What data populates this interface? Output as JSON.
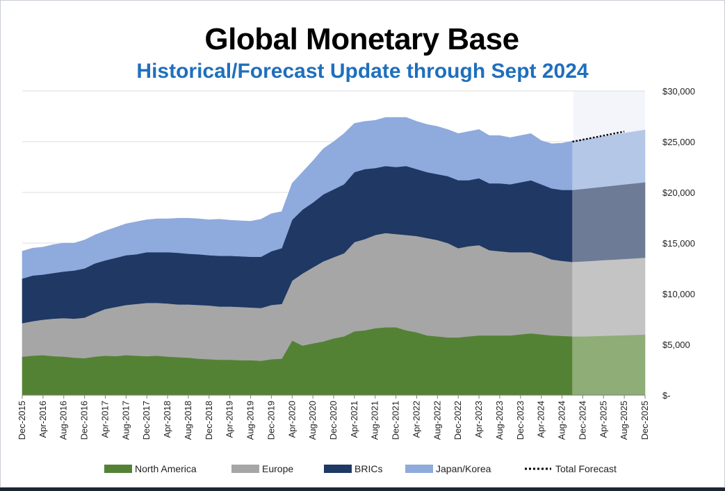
{
  "chart_data": {
    "type": "area",
    "title": "Global Monetary Base",
    "subtitle": "Historical/Forecast Update through Sept 2024",
    "y_tick_labels": [
      "$-",
      "$5,000",
      "$10,000",
      "$15,000",
      "$20,000",
      "$25,000",
      "$30,000"
    ],
    "ylim": [
      0,
      30000
    ],
    "x_tick_labels": [
      "Dec-2015",
      "Apr-2016",
      "Aug-2016",
      "Dec-2016",
      "Apr-2017",
      "Aug-2017",
      "Dec-2017",
      "Apr-2018",
      "Aug-2018",
      "Dec-2018",
      "Apr-2019",
      "Aug-2019",
      "Dec-2019",
      "Apr-2020",
      "Aug-2020",
      "Dec-2020",
      "Apr-2021",
      "Aug-2021",
      "Dec-2021",
      "Apr-2022",
      "Aug-2022",
      "Dec-2022",
      "Apr-2023",
      "Aug-2023",
      "Dec-2023",
      "Apr-2024",
      "Aug-2024",
      "Dec-2024",
      "Apr-2025",
      "Aug-2025",
      "Dec-2025"
    ],
    "x": [
      "Dec-2015",
      "Feb-2016",
      "Apr-2016",
      "Jun-2016",
      "Aug-2016",
      "Oct-2016",
      "Dec-2016",
      "Feb-2017",
      "Apr-2017",
      "Jun-2017",
      "Aug-2017",
      "Oct-2017",
      "Dec-2017",
      "Feb-2018",
      "Apr-2018",
      "Jun-2018",
      "Aug-2018",
      "Oct-2018",
      "Dec-2018",
      "Feb-2019",
      "Apr-2019",
      "Jun-2019",
      "Aug-2019",
      "Oct-2019",
      "Dec-2019",
      "Feb-2020",
      "Apr-2020",
      "Jun-2020",
      "Aug-2020",
      "Oct-2020",
      "Dec-2020",
      "Feb-2021",
      "Apr-2021",
      "Jun-2021",
      "Aug-2021",
      "Oct-2021",
      "Dec-2021",
      "Feb-2022",
      "Apr-2022",
      "Jun-2022",
      "Aug-2022",
      "Oct-2022",
      "Dec-2022",
      "Feb-2023",
      "Apr-2023",
      "Jun-2023",
      "Aug-2023",
      "Oct-2023",
      "Dec-2023",
      "Feb-2024",
      "Apr-2024",
      "Jun-2024",
      "Aug-2024",
      "Oct-2024",
      "Dec-2024",
      "Feb-2025",
      "Apr-2025",
      "Jun-2025",
      "Aug-2025",
      "Oct-2025",
      "Dec-2025"
    ],
    "forecast_start": "Oct-2024",
    "series": [
      {
        "name": "North America",
        "color": "#548235",
        "forecast_color": "#8fad76",
        "values": [
          3800,
          3900,
          3950,
          3850,
          3800,
          3700,
          3650,
          3800,
          3900,
          3850,
          3950,
          3900,
          3850,
          3900,
          3800,
          3750,
          3700,
          3600,
          3550,
          3500,
          3500,
          3450,
          3450,
          3400,
          3550,
          3600,
          5400,
          4900,
          5100,
          5300,
          5600,
          5800,
          6300,
          6400,
          6600,
          6700,
          6700,
          6400,
          6200,
          5900,
          5800,
          5700,
          5700,
          5800,
          5900,
          5900,
          5900,
          5900,
          6000,
          6100,
          6000,
          5900,
          5850,
          5800,
          5800,
          5830,
          5860,
          5890,
          5920,
          5950,
          5980
        ]
      },
      {
        "name": "Europe",
        "color": "#a6a6a6",
        "forecast_color": "#c4c4c4",
        "values": [
          3300,
          3400,
          3500,
          3700,
          3800,
          3850,
          4000,
          4300,
          4600,
          4850,
          4950,
          5100,
          5250,
          5200,
          5250,
          5200,
          5250,
          5300,
          5300,
          5250,
          5250,
          5250,
          5200,
          5200,
          5350,
          5400,
          5900,
          7100,
          7500,
          7900,
          8000,
          8200,
          8800,
          9000,
          9200,
          9300,
          9200,
          9400,
          9500,
          9600,
          9500,
          9300,
          8800,
          8900,
          8900,
          8400,
          8300,
          8200,
          8100,
          8000,
          7800,
          7500,
          7400,
          7350,
          7400,
          7430,
          7460,
          7490,
          7520,
          7550,
          7580
        ]
      },
      {
        "name": "BRICs",
        "color": "#1f3864",
        "forecast_color": "#6d7b96",
        "values": [
          4400,
          4500,
          4450,
          4500,
          4600,
          4750,
          4850,
          4900,
          4800,
          4850,
          4900,
          4900,
          5000,
          5000,
          5050,
          5100,
          5000,
          5000,
          4950,
          5000,
          5000,
          5000,
          5000,
          5050,
          5300,
          5500,
          6000,
          6300,
          6400,
          6600,
          6700,
          6800,
          6900,
          6900,
          6600,
          6600,
          6600,
          6800,
          6600,
          6500,
          6500,
          6600,
          6700,
          6500,
          6600,
          6600,
          6700,
          6700,
          6900,
          7100,
          7000,
          7000,
          7000,
          7100,
          7150,
          7200,
          7250,
          7300,
          7350,
          7400,
          7450
        ]
      },
      {
        "name": "Japan/Korea",
        "color": "#8faadc",
        "forecast_color": "#b4c7e7",
        "values": [
          2700,
          2700,
          2700,
          2800,
          2800,
          2700,
          2800,
          2800,
          2900,
          3000,
          3100,
          3200,
          3200,
          3300,
          3300,
          3400,
          3500,
          3500,
          3500,
          3600,
          3500,
          3500,
          3500,
          3700,
          3700,
          3600,
          3600,
          3700,
          4100,
          4500,
          4700,
          5000,
          4800,
          4700,
          4700,
          4800,
          4900,
          4800,
          4700,
          4700,
          4700,
          4600,
          4600,
          4800,
          4800,
          4700,
          4700,
          4600,
          4600,
          4600,
          4300,
          4400,
          4600,
          4800,
          4850,
          4900,
          4950,
          5000,
          5050,
          5100,
          5150
        ]
      }
    ],
    "total_forecast": {
      "name": "Total Forecast",
      "color": "#000000",
      "values": [
        25000,
        25200,
        25400,
        25600,
        25800,
        26000
      ]
    },
    "legend": [
      "North America",
      "Europe",
      "BRICs",
      "Japan/Korea",
      "Total Forecast"
    ],
    "legend_position": "bottom",
    "y_axis_position": "right"
  }
}
